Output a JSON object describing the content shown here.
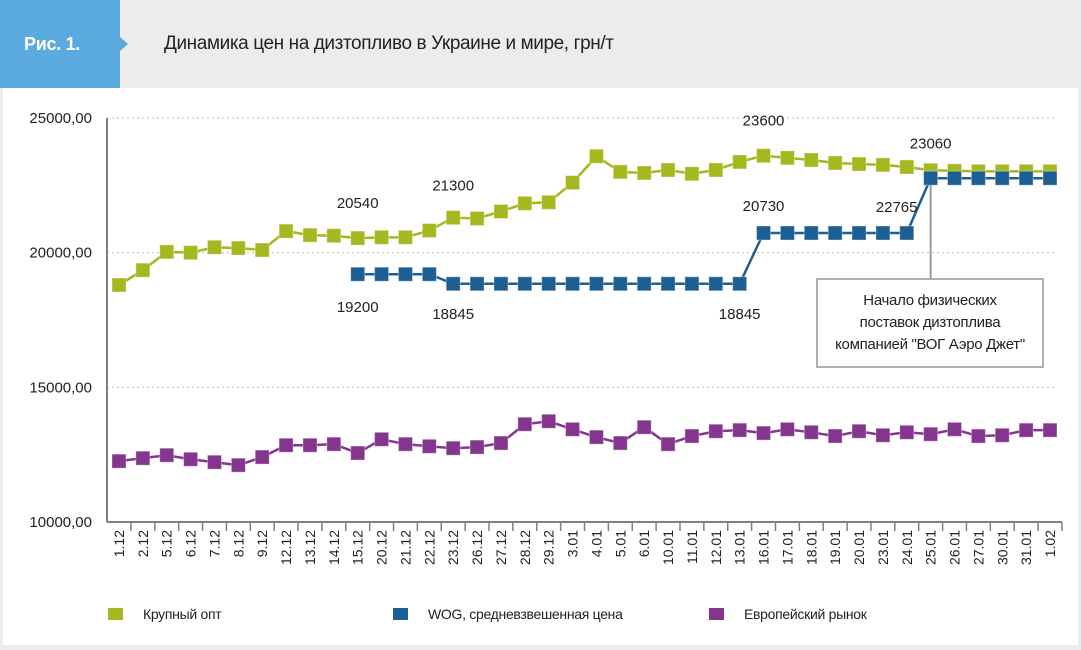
{
  "header": {
    "figure_label": "Рис. 1.",
    "title": "Динамика цен на дизтопливо в Украине и мире, грн/т"
  },
  "colors": {
    "tab": "#5aaae0",
    "header_bg": "#ececec",
    "series_green": "#a5b81f",
    "series_blue": "#1d5f92",
    "series_purple": "#84358e",
    "grid": "#bdbdbd",
    "axis": "#808080"
  },
  "callout": {
    "text": "Начало физических\nпоставок дизтоплива\nкомпанией  \"ВОГ Аэро Джет\""
  },
  "chart_data": {
    "type": "line",
    "title": "Динамика цен на дизтопливо в Украине и мире, грн/т",
    "xlabel": "",
    "ylabel": "",
    "ylim": [
      10000,
      25000
    ],
    "yticks": [
      10000,
      15000,
      20000,
      25000
    ],
    "ytick_labels": [
      "10000,00",
      "15000,00",
      "20000,00",
      "25000,00"
    ],
    "grid": "horizontal dotted",
    "legend": "bottom",
    "categories": [
      "1.12",
      "2.12",
      "5.12",
      "6.12",
      "7.12",
      "8.12",
      "9.12",
      "12.12",
      "13.12",
      "14.12",
      "15.12",
      "20.12",
      "21.12",
      "22.12",
      "23.12",
      "26.12",
      "27.12",
      "28.12",
      "29.12",
      "3.01",
      "4.01",
      "5.01",
      "6.01",
      "10.01",
      "11.01",
      "12.01",
      "13.01",
      "16.01",
      "17.01",
      "18.01",
      "19.01",
      "20.01",
      "23.01",
      "24.01",
      "25.01",
      "26.01",
      "27.01",
      "30.01",
      "31.01",
      "1.02"
    ],
    "series": [
      {
        "name": "Крупный опт",
        "color": "#a5b81f",
        "values": [
          18800,
          19350,
          20030,
          20000,
          20200,
          20170,
          20100,
          20800,
          20650,
          20630,
          20540,
          20570,
          20570,
          20820,
          21300,
          21270,
          21530,
          21830,
          21870,
          22600,
          23580,
          23000,
          22960,
          23070,
          22930,
          23070,
          23370,
          23600,
          23520,
          23440,
          23330,
          23290,
          23260,
          23180,
          23060,
          23040,
          23020,
          23020,
          23020,
          23020
        ]
      },
      {
        "name": "WOG, средневзвешенная цена",
        "color": "#1d5f92",
        "values": [
          null,
          null,
          null,
          null,
          null,
          null,
          null,
          null,
          null,
          null,
          19200,
          19200,
          19200,
          19200,
          18845,
          18845,
          18845,
          18845,
          18845,
          18845,
          18845,
          18845,
          18845,
          18845,
          18845,
          18845,
          18845,
          20730,
          20730,
          20730,
          20730,
          20730,
          20730,
          20730,
          22765,
          22765,
          22765,
          22765,
          22765,
          22765
        ]
      },
      {
        "name": "Европейский рынок",
        "color": "#84358e",
        "values": [
          12260,
          12370,
          12480,
          12330,
          12220,
          12110,
          12410,
          12850,
          12850,
          12890,
          12560,
          13070,
          12890,
          12810,
          12740,
          12780,
          12930,
          13630,
          13740,
          13440,
          13150,
          12930,
          13520,
          12890,
          13190,
          13370,
          13410,
          13300,
          13440,
          13330,
          13190,
          13370,
          13220,
          13330,
          13260,
          13440,
          13190,
          13220,
          13410,
          13410
        ]
      }
    ],
    "annotations": [
      {
        "text": "20540",
        "series": 0,
        "category": "15.12",
        "position": "above"
      },
      {
        "text": "21300",
        "series": 0,
        "category": "23.12",
        "position": "above"
      },
      {
        "text": "23600",
        "series": 0,
        "category": "16.01",
        "position": "above"
      },
      {
        "text": "23060",
        "series": 0,
        "category": "25.01",
        "position": "above"
      },
      {
        "text": "19200",
        "series": 1,
        "category": "15.12",
        "position": "below"
      },
      {
        "text": "18845",
        "series": 1,
        "category": "23.12",
        "position": "below"
      },
      {
        "text": "18845",
        "series": 1,
        "category": "13.01",
        "position": "below"
      },
      {
        "text": "20730",
        "series": 1,
        "category": "16.01",
        "position": "above"
      },
      {
        "text": "22765",
        "series": 1,
        "category": "25.01",
        "position": "below-left"
      }
    ]
  }
}
